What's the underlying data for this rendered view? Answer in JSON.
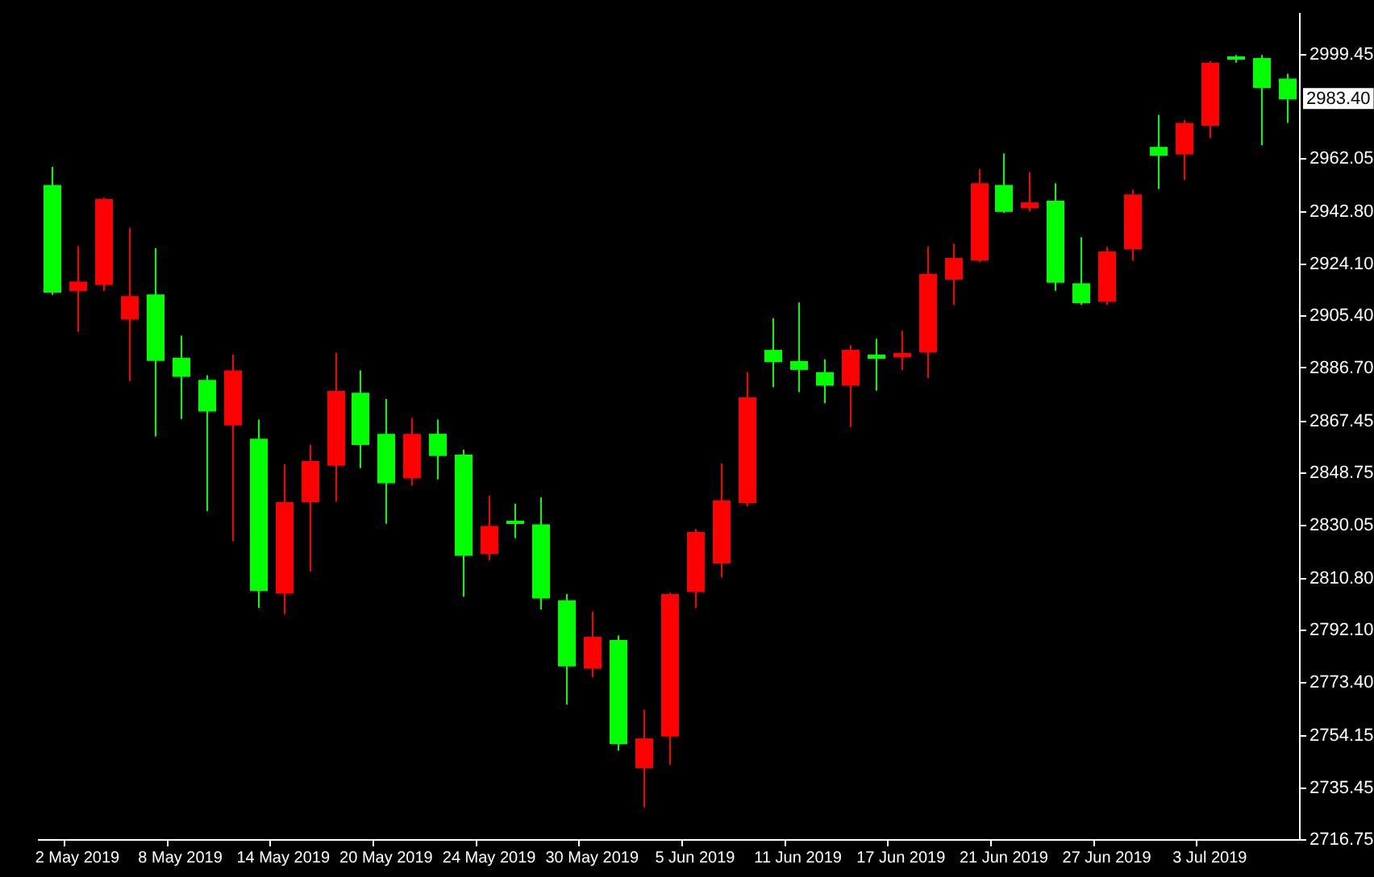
{
  "chart_data": {
    "type": "candlestick",
    "categories": [
      null,
      "2 May 2019",
      null,
      null,
      null,
      "8 May 2019",
      null,
      null,
      null,
      "14 May 2019",
      null,
      null,
      null,
      "20 May 2019",
      null,
      null,
      null,
      "24 May 2019",
      null,
      null,
      null,
      "30 May 2019",
      null,
      null,
      null,
      "5 Jun 2019",
      null,
      null,
      null,
      "11 Jun 2019",
      null,
      null,
      null,
      "17 Jun 2019",
      null,
      null,
      null,
      "21 Jun 2019",
      null,
      null,
      null,
      "27 Jun 2019",
      null,
      null,
      null,
      "3 Jul 2019",
      null,
      null,
      null
    ],
    "ohlc": [
      [
        2952.6,
        2959.1,
        2913.0,
        2913.8
      ],
      [
        2914.4,
        2930.5,
        2899.7,
        2917.8
      ],
      [
        2916.6,
        2948.0,
        2914.4,
        2947.5
      ],
      [
        2904.1,
        2937.2,
        2882.0,
        2912.6
      ],
      [
        2913.2,
        2929.8,
        2862.0,
        2889.2
      ],
      [
        2890.4,
        2898.3,
        2868.3,
        2883.5
      ],
      [
        2882.4,
        2884.1,
        2835.1,
        2871.0
      ],
      [
        2866.0,
        2891.5,
        2824.3,
        2885.8
      ],
      [
        2861.2,
        2868.1,
        2800.3,
        2806.4
      ],
      [
        2805.4,
        2852.1,
        2798.0,
        2838.4
      ],
      [
        2838.4,
        2859.0,
        2813.4,
        2853.2
      ],
      [
        2851.5,
        2892.1,
        2838.6,
        2878.4
      ],
      [
        2877.8,
        2885.8,
        2850.6,
        2859.0
      ],
      [
        2863.0,
        2875.5,
        2830.6,
        2845.2
      ],
      [
        2847.0,
        2868.7,
        2844.3,
        2863.0
      ],
      [
        2863.0,
        2868.1,
        2846.6,
        2855.0
      ],
      [
        2855.5,
        2857.2,
        2804.3,
        2819.1
      ],
      [
        2819.7,
        2840.7,
        2817.4,
        2829.8
      ],
      [
        2831.1,
        2837.8,
        2825.4,
        2831.0
      ],
      [
        2830.4,
        2840.1,
        2799.7,
        2803.7
      ],
      [
        2803.0,
        2805.3,
        2765.5,
        2779.2
      ],
      [
        2778.4,
        2799.0,
        2775.2,
        2789.9
      ],
      [
        2788.7,
        2790.4,
        2748.9,
        2751.2
      ],
      [
        2742.6,
        2763.6,
        2728.4,
        2753.3
      ],
      [
        2754.0,
        2805.8,
        2743.8,
        2805.3
      ],
      [
        2806.0,
        2828.7,
        2800.3,
        2827.6
      ],
      [
        2816.3,
        2852.3,
        2811.2,
        2839.0
      ],
      [
        2838.0,
        2885.2,
        2836.9,
        2876.1
      ],
      [
        2893.2,
        2904.6,
        2879.7,
        2888.8
      ],
      [
        2889.2,
        2910.3,
        2878.0,
        2886.0
      ],
      [
        2885.2,
        2889.8,
        2874.0,
        2880.3
      ],
      [
        2880.3,
        2894.9,
        2865.4,
        2893.2
      ],
      [
        2891.5,
        2897.2,
        2878.5,
        2890.0
      ],
      [
        2890.5,
        2900.1,
        2886.0,
        2892.1
      ],
      [
        2892.3,
        2930.4,
        2883.1,
        2920.6
      ],
      [
        2918.5,
        2931.5,
        2909.4,
        2926.3
      ],
      [
        2925.4,
        2958.3,
        2924.8,
        2953.2
      ],
      [
        2952.6,
        2964.0,
        2942.5,
        2942.9
      ],
      [
        2944.2,
        2957.2,
        2943.1,
        2946.3
      ],
      [
        2946.9,
        2953.2,
        2914.5,
        2917.4
      ],
      [
        2917.2,
        2933.8,
        2909.4,
        2910.0
      ],
      [
        2910.5,
        2930.4,
        2909.4,
        2928.6
      ],
      [
        2929.4,
        2950.9,
        2925.4,
        2949.2
      ],
      [
        2966.3,
        2977.8,
        2951.1,
        2963.1
      ],
      [
        2963.6,
        2976.0,
        2954.5,
        2974.9
      ],
      [
        2973.9,
        2997.2,
        2969.4,
        2996.6
      ],
      [
        2998.3,
        2999.4,
        2996.6,
        2998.0
      ],
      [
        2998.3,
        2999.4,
        2966.9,
        2987.5
      ],
      [
        2990.9,
        2992.6,
        2974.9,
        2983.4
      ]
    ],
    "colors": [
      "#00ff00",
      "#ff0000",
      "#ff0000",
      "#ff0000",
      "#00ff00",
      "#00ff00",
      "#00ff00",
      "#ff0000",
      "#00ff00",
      "#ff0000",
      "#ff0000",
      "#ff0000",
      "#00ff00",
      "#00ff00",
      "#ff0000",
      "#00ff00",
      "#00ff00",
      "#ff0000",
      "#00ff00",
      "#00ff00",
      "#00ff00",
      "#ff0000",
      "#00ff00",
      "#ff0000",
      "#ff0000",
      "#ff0000",
      "#ff0000",
      "#ff0000",
      "#00ff00",
      "#00ff00",
      "#00ff00",
      "#ff0000",
      "#00ff00",
      "#ff0000",
      "#ff0000",
      "#ff0000",
      "#ff0000",
      "#00ff00",
      "#ff0000",
      "#00ff00",
      "#00ff00",
      "#ff0000",
      "#ff0000",
      "#00ff00",
      "#ff0000",
      "#ff0000",
      "#00ff00",
      "#00ff00",
      "#00ff00"
    ],
    "ylim": [
      2716.75,
      3014.2
    ],
    "yticks": [
      {
        "value": 2716.75,
        "label": "2716.75"
      },
      {
        "value": 2735.45,
        "label": "2735.45"
      },
      {
        "value": 2754.15,
        "label": "2754.15"
      },
      {
        "value": 2773.4,
        "label": "2773.40"
      },
      {
        "value": 2792.1,
        "label": "2792.10"
      },
      {
        "value": 2810.8,
        "label": "2810.80"
      },
      {
        "value": 2830.05,
        "label": "2830.05"
      },
      {
        "value": 2848.75,
        "label": "2848.75"
      },
      {
        "value": 2867.45,
        "label": "2867.45"
      },
      {
        "value": 2886.7,
        "label": "2886.70"
      },
      {
        "value": 2905.4,
        "label": "2905.40"
      },
      {
        "value": 2924.1,
        "label": "2924.10"
      },
      {
        "value": 2942.8,
        "label": "2942.80"
      },
      {
        "value": 2962.05,
        "label": "2962.05"
      },
      {
        "value": 2999.45,
        "label": "2999.45"
      }
    ],
    "annotations": [
      "2983.40"
    ]
  }
}
